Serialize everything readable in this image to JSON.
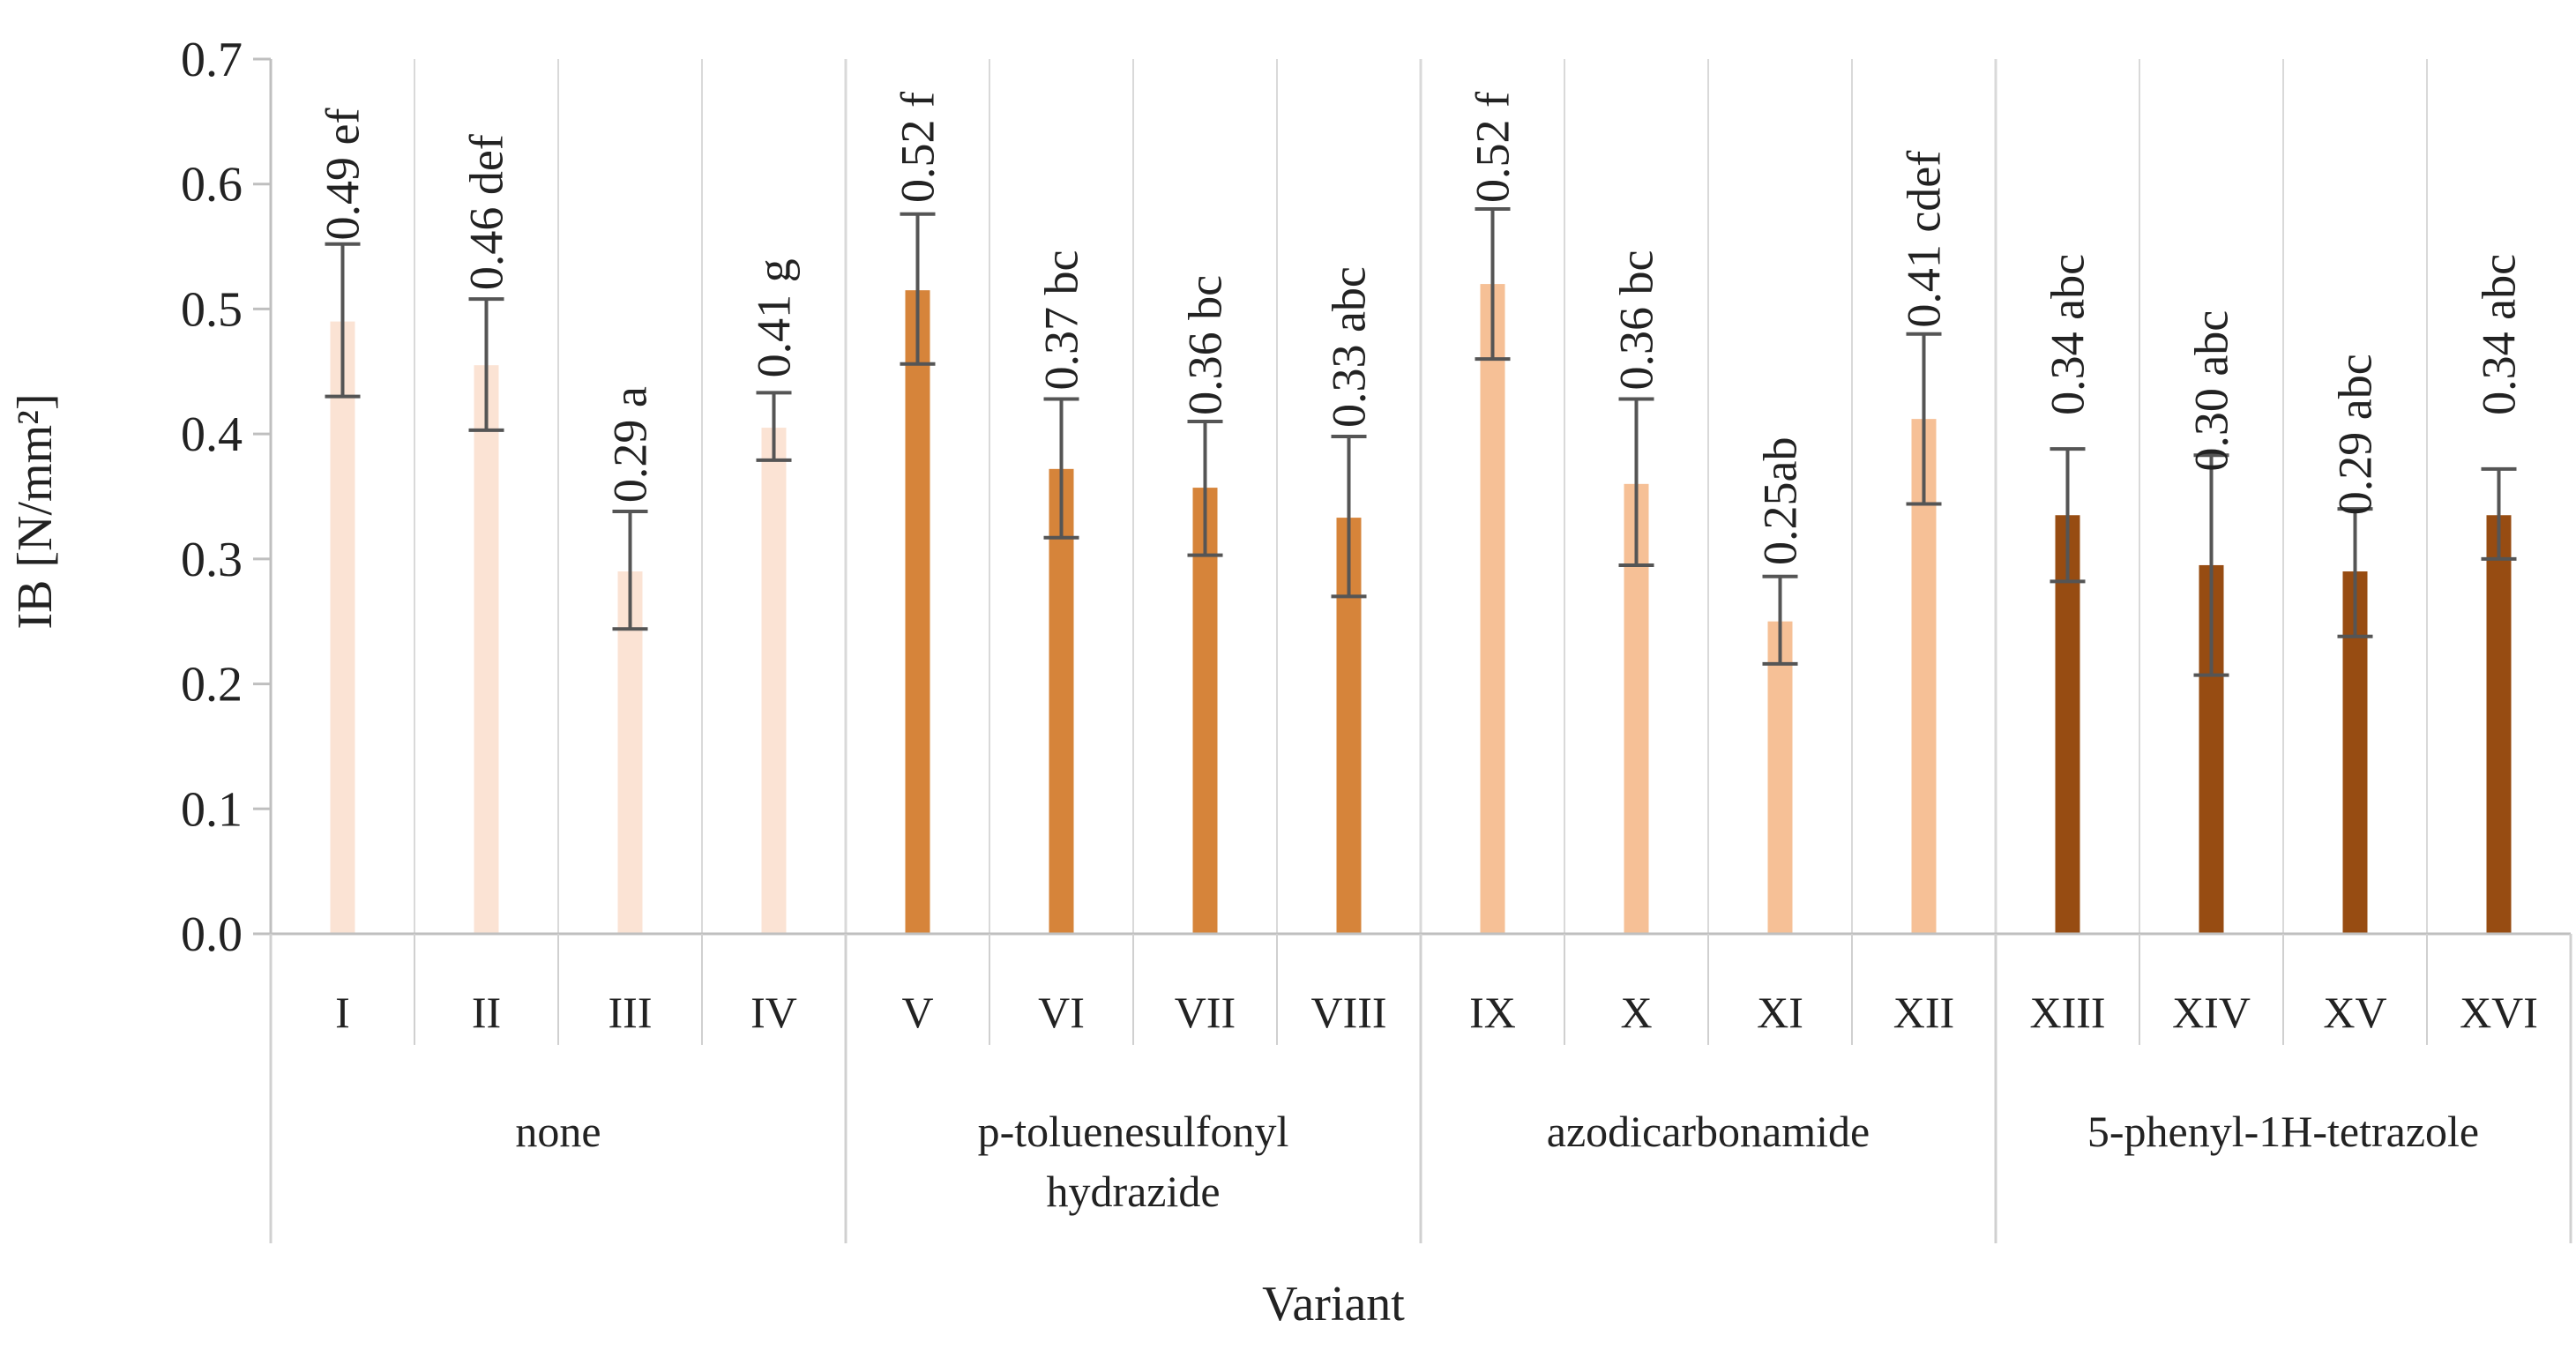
{
  "chart_data": {
    "type": "bar",
    "xlabel": "Variant",
    "ylabel": "IB [N/mm²]",
    "ylim": [
      0,
      0.7
    ],
    "yticks": [
      "0.0",
      "0.1",
      "0.2",
      "0.3",
      "0.4",
      "0.5",
      "0.6",
      "0.7"
    ],
    "grid": "vertical separators between variants",
    "categories": [
      "I",
      "II",
      "III",
      "IV",
      "V",
      "VI",
      "VII",
      "VIII",
      "IX",
      "X",
      "XI",
      "XII",
      "XIII",
      "XIV",
      "XV",
      "XVI"
    ],
    "values": [
      0.49,
      0.455,
      0.29,
      0.405,
      0.515,
      0.372,
      0.357,
      0.333,
      0.52,
      0.36,
      0.25,
      0.412,
      0.335,
      0.295,
      0.29,
      0.335
    ],
    "error_low": [
      0.43,
      0.403,
      0.244,
      0.379,
      0.456,
      0.317,
      0.303,
      0.27,
      0.46,
      0.295,
      0.216,
      0.344,
      0.282,
      0.207,
      0.238,
      0.3
    ],
    "error_high": [
      0.552,
      0.508,
      0.338,
      0.433,
      0.576,
      0.428,
      0.41,
      0.398,
      0.58,
      0.428,
      0.286,
      0.48,
      0.388,
      0.383,
      0.34,
      0.372
    ],
    "data_labels": [
      "0.49 ef",
      "0.46 def",
      "0.29 a",
      "0.41 g",
      "0.52 f",
      "0.37 bc",
      "0.36 bc",
      "0.33 abc",
      "0.52 f",
      "0.36  bc",
      "0.25ab",
      "0.41 cdef",
      "0.34 abc",
      "0.30 abc",
      "0.29 abc",
      "0.34 abc"
    ],
    "label_base": [
      0.555,
      0.515,
      0.345,
      0.445,
      0.585,
      0.435,
      0.415,
      0.405,
      0.585,
      0.435,
      0.295,
      0.485,
      0.415,
      0.37,
      0.335,
      0.415
    ],
    "groups": [
      {
        "name": "none",
        "lines": [
          "none"
        ],
        "start": 0,
        "count": 4,
        "color": "#fbe3d4"
      },
      {
        "name": "p-toluenesulfonyl hydrazide",
        "lines": [
          "p-toluenesulfonyl",
          "hydrazide"
        ],
        "start": 4,
        "count": 4,
        "color": "#d6843a"
      },
      {
        "name": "azodicarbonamide",
        "lines": [
          "azodicarbonamide"
        ],
        "start": 8,
        "count": 4,
        "color": "#f6c096"
      },
      {
        "name": "5-phenyl-1H-tetrazole",
        "lines": [
          "5-phenyl-1H-tetrazole"
        ],
        "start": 12,
        "count": 4,
        "color": "#974c12"
      }
    ],
    "error_bar_color": "#555555"
  }
}
